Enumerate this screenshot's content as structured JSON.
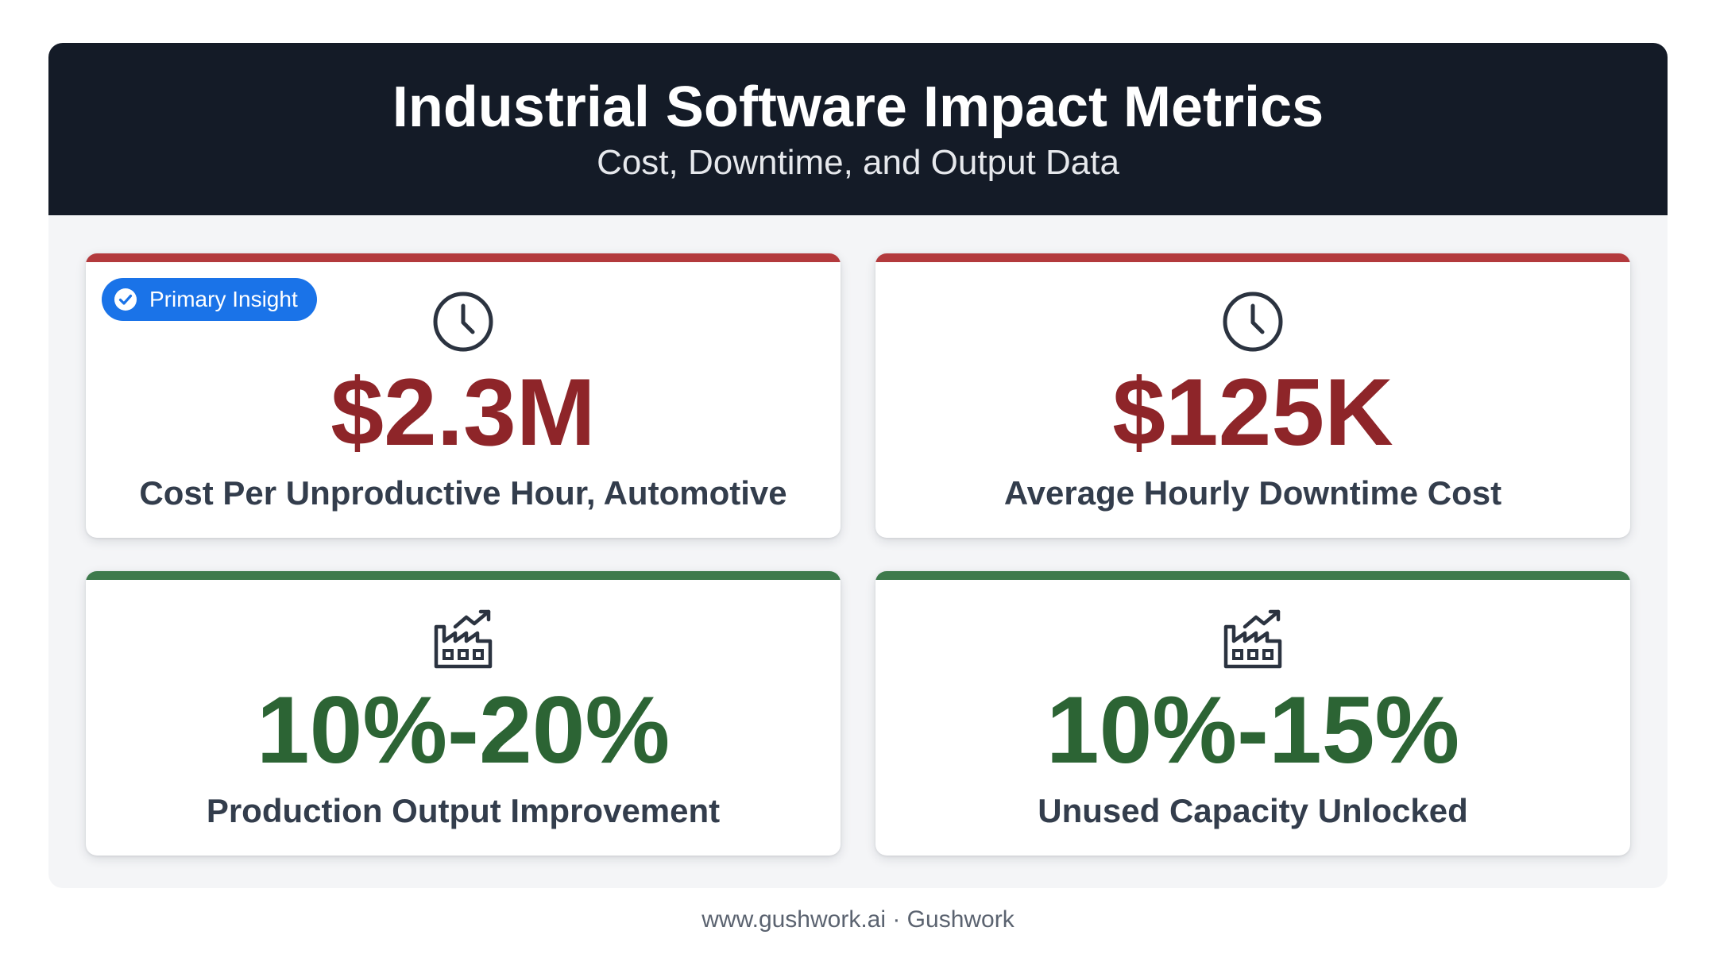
{
  "header": {
    "title": "Industrial Software Impact Metrics",
    "subtitle": "Cost, Downtime, and Output Data"
  },
  "badge": {
    "label": "Primary Insight",
    "color": "#1a73e8",
    "icon": "check-circle-icon"
  },
  "cards": [
    {
      "value": "$2.3M",
      "label": "Cost Per Unproductive Hour, Automotive",
      "icon": "clock-icon",
      "accent": "#b33a3d",
      "value_color": "#8e2529"
    },
    {
      "value": "$125K",
      "label": "Average Hourly Downtime Cost",
      "icon": "clock-icon",
      "accent": "#b33a3d",
      "value_color": "#8e2529"
    },
    {
      "value": "10%-20%",
      "label": "Production Output Improvement",
      "icon": "factory-growth-icon",
      "accent": "#3e7a4c",
      "value_color": "#2c6434"
    },
    {
      "value": "10%-15%",
      "label": "Unused Capacity Unlocked",
      "icon": "factory-growth-icon",
      "accent": "#3e7a4c",
      "value_color": "#2c6434"
    }
  ],
  "footer": {
    "text": "www.gushwork.ai · Gushwork"
  },
  "colors": {
    "header_bg": "#141b27",
    "panel_bg": "#f4f5f7",
    "label_text": "#333d4c"
  }
}
